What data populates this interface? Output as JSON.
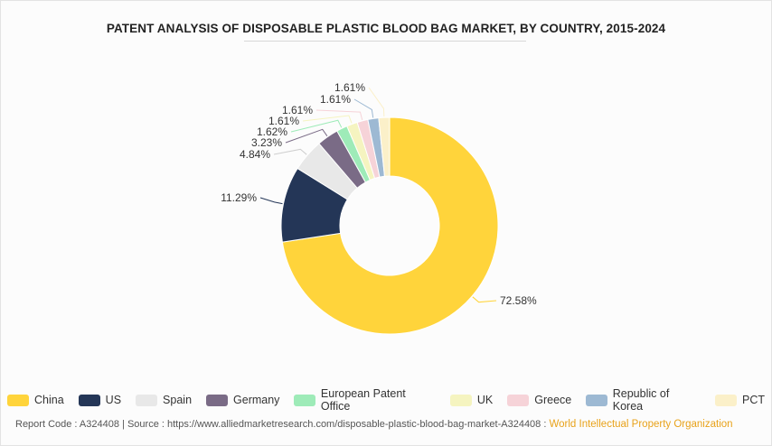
{
  "title": "PATENT ANALYSIS OF DISPOSABLE PLASTIC BLOOD BAG MARKET, BY COUNTRY, 2015-2024",
  "chart_data": {
    "type": "pie",
    "style": "donut",
    "legend_position": "bottom",
    "slices": [
      {
        "name": "China",
        "value": 72.58,
        "label": "72.58%",
        "color": "#FFD43B"
      },
      {
        "name": "US",
        "value": 11.29,
        "label": "11.29%",
        "color": "#243657"
      },
      {
        "name": "Spain",
        "value": 4.84,
        "label": "4.84%",
        "color": "#E8E8E8"
      },
      {
        "name": "Germany",
        "value": 3.23,
        "label": "3.23%",
        "color": "#7A6B86"
      },
      {
        "name": "European Patent Office",
        "value": 1.62,
        "label": "1.62%",
        "color": "#9EEBB8"
      },
      {
        "name": "UK",
        "value": 1.61,
        "label": "1.61%",
        "color": "#F5F4C0"
      },
      {
        "name": "Greece",
        "value": 1.61,
        "label": "1.61%",
        "color": "#F6D3D8"
      },
      {
        "name": "Republic of Korea",
        "value": 1.61,
        "label": "1.61%",
        "color": "#9DB9D3"
      },
      {
        "name": "PCT",
        "value": 1.61,
        "label": "1.61%",
        "color": "#FBF0C9"
      }
    ]
  },
  "footer": {
    "report_code": "Report Code : A324408",
    "separator": "|",
    "source": "Source : https://www.alliedmarketresearch.com/disposable-plastic-blood-bag-market-A324408",
    "source_suffix": ":",
    "org": "World Intellectual Property Organization"
  }
}
